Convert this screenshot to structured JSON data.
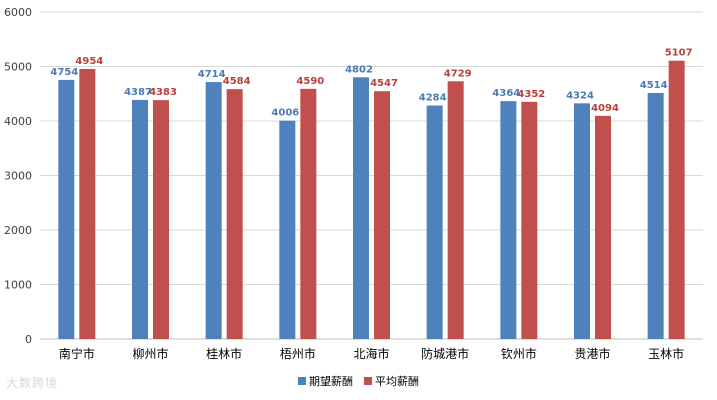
{
  "chart_data": {
    "type": "bar",
    "title": "",
    "xlabel": "",
    "ylabel": "",
    "ylim": [
      0,
      6000
    ],
    "yticks": [
      0,
      1000,
      2000,
      3000,
      4000,
      5000,
      6000
    ],
    "grid": true,
    "legend_position": "bottom",
    "categories": [
      "南宁市",
      "柳州市",
      "桂林市",
      "梧州市",
      "北海市",
      "防城港市",
      "钦州市",
      "贵港市",
      "玉林市"
    ],
    "series": [
      {
        "name": "期望薪酬",
        "color": "#4f81bd",
        "label_color": "#4a7ab5",
        "values": [
          4754,
          4387,
          4714,
          4006,
          4802,
          4284,
          4364,
          4324,
          4514
        ]
      },
      {
        "name": "平均薪酬",
        "color": "#c0504d",
        "label_color": "#b8403c",
        "values": [
          4954,
          4383,
          4584,
          4590,
          4547,
          4729,
          4352,
          4094,
          5107
        ]
      }
    ]
  },
  "watermark": "大数跨境"
}
